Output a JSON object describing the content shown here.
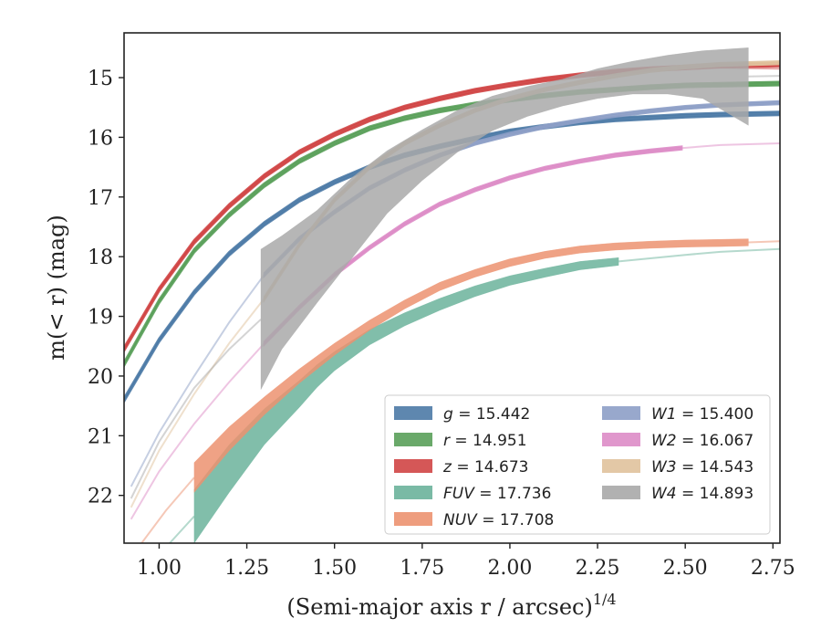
{
  "chart_data": {
    "type": "line",
    "xlabel": "(Semi-major axis r / arcsec)",
    "xlabel_sup": "1/4",
    "ylabel": "m(< r) (mag)",
    "xlim": [
      0.9,
      2.77
    ],
    "ylim": [
      22.8,
      14.25
    ],
    "y_inverted": true,
    "x_ticks": [
      "1.00",
      "1.25",
      "1.50",
      "1.75",
      "2.00",
      "2.25",
      "2.50",
      "2.75"
    ],
    "y_ticks": [
      "15",
      "16",
      "17",
      "18",
      "19",
      "20",
      "21",
      "22"
    ],
    "grid": false,
    "legend_placement": "lower-right",
    "series": [
      {
        "name": "g = 15.442",
        "legend_math": "g",
        "legend_value": " = 15.442",
        "color": "#4c7aa6",
        "x": [
          0.9,
          1.0,
          1.1,
          1.2,
          1.3,
          1.4,
          1.5,
          1.6,
          1.7,
          1.8,
          1.9,
          2.0,
          2.1,
          2.2,
          2.3,
          2.4,
          2.5,
          2.6,
          2.77
        ],
        "y": [
          20.4,
          19.4,
          18.6,
          17.95,
          17.45,
          17.05,
          16.75,
          16.5,
          16.3,
          16.15,
          16.02,
          15.9,
          15.82,
          15.75,
          15.7,
          15.67,
          15.64,
          15.62,
          15.6
        ],
        "band_width": [
          0.06
        ]
      },
      {
        "name": "r = 14.951",
        "legend_math": "r",
        "legend_value": " = 14.951",
        "color": "#5aa05a",
        "x": [
          0.9,
          1.0,
          1.1,
          1.2,
          1.3,
          1.4,
          1.5,
          1.6,
          1.7,
          1.8,
          1.9,
          2.0,
          2.1,
          2.2,
          2.3,
          2.4,
          2.5,
          2.6,
          2.77
        ],
        "y": [
          19.8,
          18.75,
          17.9,
          17.3,
          16.8,
          16.4,
          16.1,
          15.85,
          15.68,
          15.55,
          15.45,
          15.37,
          15.3,
          15.24,
          15.2,
          15.16,
          15.13,
          15.12,
          15.1
        ],
        "band_width": [
          0.06
        ]
      },
      {
        "name": "z = 14.673",
        "legend_math": "z",
        "legend_value": " = 14.673",
        "color": "#d04545",
        "x": [
          0.9,
          1.0,
          1.1,
          1.2,
          1.3,
          1.4,
          1.5,
          1.6,
          1.7,
          1.8,
          1.9,
          2.0,
          2.1,
          2.2,
          2.3,
          2.4,
          2.5,
          2.6,
          2.77
        ],
        "y": [
          19.55,
          18.55,
          17.75,
          17.15,
          16.65,
          16.25,
          15.95,
          15.7,
          15.5,
          15.35,
          15.22,
          15.12,
          15.03,
          14.96,
          14.9,
          14.86,
          14.83,
          14.8,
          14.78
        ],
        "band_width": [
          0.06
        ]
      },
      {
        "name": "FUV = 17.736",
        "legend_math": "FUV",
        "legend_value": " = 17.736",
        "color": "#6bb39b",
        "x": [
          1.1,
          1.2,
          1.3,
          1.4,
          1.45,
          1.5,
          1.6,
          1.7,
          1.8,
          1.9,
          2.0,
          2.1,
          2.2,
          2.31
        ],
        "y": [
          22.35,
          21.55,
          20.85,
          20.3,
          20.0,
          19.75,
          19.35,
          19.05,
          18.8,
          18.58,
          18.4,
          18.27,
          18.15,
          18.08
        ],
        "band_width": [
          0.9,
          0.8,
          0.6,
          0.45,
          0.38,
          0.32,
          0.26,
          0.22,
          0.2,
          0.18,
          0.16,
          0.15,
          0.14,
          0.13
        ]
      },
      {
        "name": "NUV = 17.708",
        "legend_math": "NUV",
        "legend_value": " = 17.708",
        "color": "#ec9270",
        "x": [
          1.1,
          1.2,
          1.3,
          1.4,
          1.5,
          1.6,
          1.7,
          1.8,
          1.9,
          2.0,
          2.1,
          2.2,
          2.3,
          2.4,
          2.5,
          2.6,
          2.68
        ],
        "y": [
          21.7,
          21.05,
          20.5,
          20.0,
          19.55,
          19.15,
          18.8,
          18.5,
          18.28,
          18.1,
          17.97,
          17.88,
          17.83,
          17.8,
          17.78,
          17.77,
          17.76
        ],
        "band_width": [
          0.5,
          0.4,
          0.3,
          0.24,
          0.2,
          0.17,
          0.15,
          0.14,
          0.13,
          0.13,
          0.12,
          0.12,
          0.12,
          0.12,
          0.12,
          0.12,
          0.12
        ]
      },
      {
        "name": "W1 = 15.400",
        "legend_math": "W1",
        "legend_value": " = 15.400",
        "color": "#8d9fc6",
        "x": [
          1.3,
          1.4,
          1.5,
          1.6,
          1.7,
          1.8,
          1.9,
          2.0,
          2.1,
          2.2,
          2.3,
          2.4,
          2.5,
          2.6,
          2.77
        ],
        "y": [
          18.3,
          17.7,
          17.25,
          16.85,
          16.55,
          16.3,
          16.1,
          15.95,
          15.82,
          15.72,
          15.63,
          15.56,
          15.5,
          15.46,
          15.42
        ],
        "band_width": [
          0.05
        ]
      },
      {
        "name": "W2 = 16.067",
        "legend_math": "W2",
        "legend_value": " = 16.067",
        "color": "#dd8cc6",
        "x": [
          1.3,
          1.4,
          1.5,
          1.6,
          1.7,
          1.8,
          1.9,
          2.0,
          2.1,
          2.2,
          2.3,
          2.4,
          2.49
        ],
        "y": [
          19.45,
          18.85,
          18.3,
          17.85,
          17.45,
          17.12,
          16.88,
          16.68,
          16.52,
          16.4,
          16.3,
          16.23,
          16.18
        ],
        "band_width": [
          0.05
        ]
      },
      {
        "name": "W3 = 14.543",
        "legend_math": "W3",
        "legend_value": " = 14.543",
        "color": "#e0c29c",
        "x": [
          1.3,
          1.4,
          1.5,
          1.6,
          1.7,
          1.8,
          1.9,
          2.0,
          2.1,
          2.2,
          2.3,
          2.4,
          2.5,
          2.6,
          2.77
        ],
        "y": [
          18.7,
          17.8,
          17.05,
          16.5,
          16.1,
          15.8,
          15.55,
          15.35,
          15.2,
          15.08,
          14.97,
          14.88,
          14.82,
          14.78,
          14.75
        ],
        "band_width": [
          0.05
        ]
      },
      {
        "name": "W4 = 14.893",
        "legend_math": "W4",
        "legend_value": " = 14.893",
        "color": "#a9a9a9",
        "x": [
          1.29,
          1.35,
          1.45,
          1.55,
          1.65,
          1.75,
          1.85,
          1.95,
          2.05,
          2.15,
          2.25,
          2.35,
          2.45,
          2.55,
          2.68
        ],
        "y": [
          19.05,
          18.6,
          18.0,
          17.35,
          16.75,
          16.3,
          15.9,
          15.6,
          15.4,
          15.25,
          15.1,
          15.0,
          14.95,
          14.95,
          15.15
        ],
        "band_width": [
          2.35,
          1.9,
          1.55,
          1.35,
          1.05,
          0.85,
          0.7,
          0.58,
          0.5,
          0.45,
          0.5,
          0.55,
          0.65,
          0.8,
          1.3
        ]
      }
    ],
    "extrapolations": [
      {
        "series": "r",
        "x": [
          2.55,
          2.77
        ],
        "y": [
          15.13,
          15.08
        ]
      },
      {
        "series": "z",
        "x": [
          2.55,
          2.77
        ],
        "y": [
          14.83,
          14.85
        ]
      },
      {
        "series": "FUV",
        "x": [
          2.31,
          2.5,
          2.6,
          2.77
        ],
        "y": [
          18.08,
          17.97,
          17.92,
          17.87
        ]
      },
      {
        "series": "NUV",
        "x": [
          2.68,
          2.77
        ],
        "y": [
          17.76,
          17.74
        ]
      },
      {
        "series": "W1",
        "x": [
          0.92,
          1.0,
          1.1,
          1.2,
          1.3
        ],
        "y": [
          21.85,
          20.95,
          20.0,
          19.1,
          18.3
        ]
      },
      {
        "series": "W2",
        "x": [
          0.92,
          1.0,
          1.1,
          1.2,
          1.3
        ],
        "y": [
          22.4,
          21.6,
          20.8,
          20.1,
          19.45
        ]
      },
      {
        "series": "W2",
        "x": [
          2.49,
          2.6,
          2.77
        ],
        "y": [
          16.18,
          16.13,
          16.1
        ]
      },
      {
        "series": "W3",
        "x": [
          0.92,
          1.0,
          1.1,
          1.2,
          1.3
        ],
        "y": [
          22.2,
          21.25,
          20.3,
          19.45,
          18.7
        ]
      },
      {
        "series": "W4",
        "x": [
          0.92,
          1.0,
          1.1,
          1.2,
          1.29
        ],
        "y": [
          22.05,
          21.1,
          20.2,
          19.55,
          19.05
        ]
      },
      {
        "series": "W4",
        "x": [
          2.68,
          2.77
        ],
        "y": [
          14.98,
          14.97
        ]
      },
      {
        "series": "NUV",
        "x": [
          0.95,
          1.02,
          1.1
        ],
        "y": [
          22.8,
          22.25,
          21.7
        ]
      },
      {
        "series": "FUV",
        "x": [
          1.03,
          1.1
        ],
        "y": [
          22.8,
          22.35
        ]
      }
    ]
  }
}
